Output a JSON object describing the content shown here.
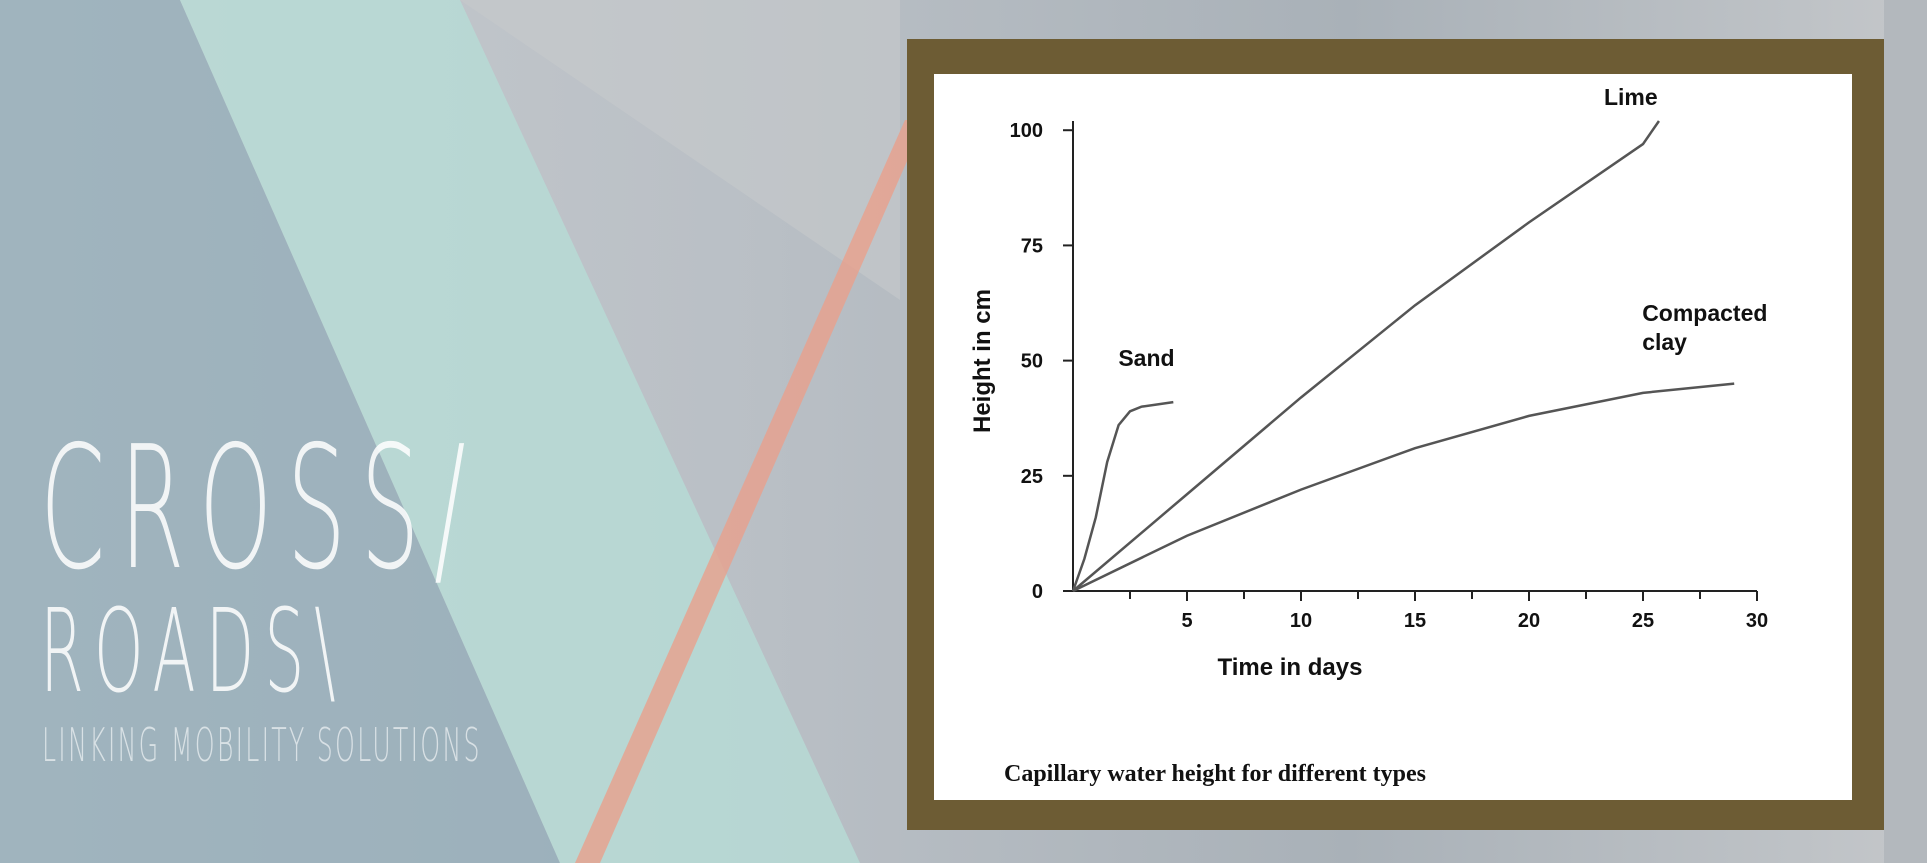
{
  "branding": {
    "line1": "CROSS/",
    "line2": "ROADS\\",
    "tagline": "LINKING MOBILITY SOLUTIONS"
  },
  "chart_data": {
    "type": "line",
    "caption": "Capillary water height for different types",
    "x_label": "Time in days",
    "y_label": "Height in cm",
    "xlim": [
      0,
      30
    ],
    "ylim": [
      0,
      102
    ],
    "xticks": [
      5,
      10,
      15,
      20,
      25,
      30
    ],
    "yticks": [
      0,
      25,
      50,
      75,
      100
    ],
    "series": [
      {
        "name": "Lime",
        "color": "#555555",
        "x": [
          0,
          5,
          10,
          15,
          20,
          25,
          25.7
        ],
        "values": [
          0,
          21,
          42,
          62,
          80,
          97,
          102
        ]
      },
      {
        "name": "Sand",
        "color": "#555555",
        "x": [
          0,
          0.5,
          1,
          1.5,
          2,
          2.5,
          3,
          4.4
        ],
        "values": [
          0,
          7,
          16,
          28,
          36,
          39,
          40,
          41
        ]
      },
      {
        "name": "Compacted clay",
        "color": "#555555",
        "x": [
          0,
          5,
          10,
          15,
          20,
          25,
          29
        ],
        "values": [
          0,
          12,
          22,
          31,
          38,
          43,
          45
        ]
      }
    ]
  }
}
